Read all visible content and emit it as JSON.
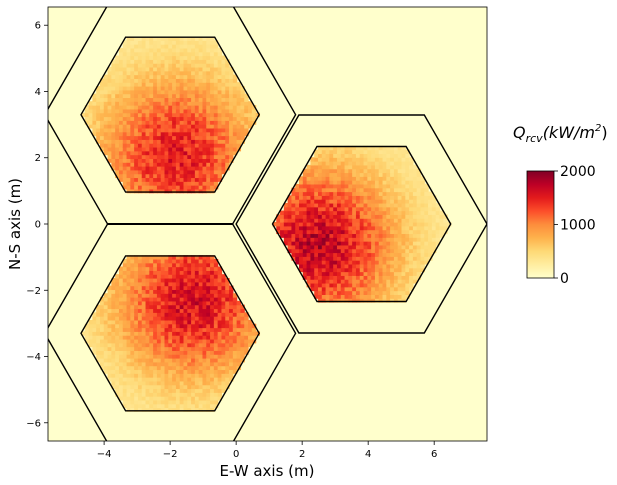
{
  "chart_data": {
    "type": "heatmap",
    "xlabel": "E-W axis (m)",
    "ylabel": "N-S axis (m)",
    "xlim": [
      -5.7,
      7.6
    ],
    "ylim": [
      -6.55,
      6.55
    ],
    "x_ticks": [
      "−4",
      "−2",
      "0",
      "2",
      "4",
      "6"
    ],
    "x_tick_values": [
      -4,
      -2,
      0,
      2,
      4,
      6
    ],
    "y_ticks": [
      "−6",
      "−4",
      "−2",
      "0",
      "2",
      "4",
      "6"
    ],
    "y_tick_values": [
      -6,
      -4,
      -2,
      0,
      2,
      4,
      6
    ],
    "background_color": "#ffffcc",
    "colormap": "YlOrRd",
    "colorbar": {
      "title_main": "Q",
      "title_sub": "rcv",
      "title_units": "(kW/m",
      "title_exp": "2",
      "title_close": ")",
      "min": 0,
      "max": 2000,
      "ticks": [
        "0",
        "1000",
        "2000"
      ],
      "tick_values": [
        0,
        1000,
        2000
      ]
    },
    "receivers": [
      {
        "center": [
          -2.0,
          3.3
        ],
        "inner_radius": 2.7,
        "outer_radius": 3.8,
        "peak_flux": 1250,
        "peak_offset": [
          0.2,
          -1.2
        ]
      },
      {
        "center": [
          -2.0,
          -3.3
        ],
        "inner_radius": 2.7,
        "outer_radius": 3.8,
        "peak_flux": 1350,
        "peak_offset": [
          0.7,
          1.0
        ]
      },
      {
        "center": [
          3.8,
          0.0
        ],
        "inner_radius": 2.7,
        "outer_radius": 3.8,
        "peak_flux": 1450,
        "peak_offset": [
          -1.3,
          -0.6
        ]
      }
    ]
  }
}
